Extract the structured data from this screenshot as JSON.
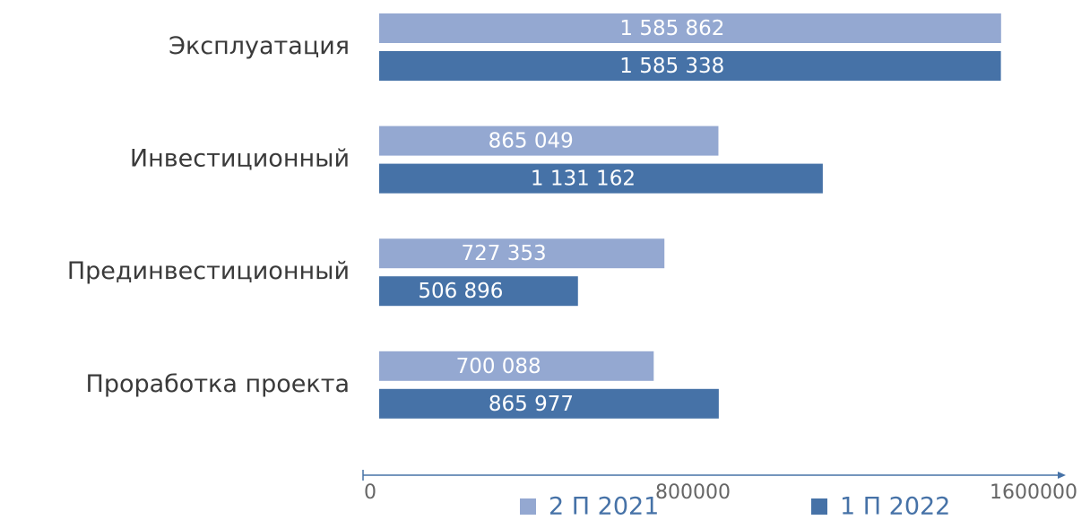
{
  "chart_data": {
    "type": "hbar",
    "categories": [
      "Эксплуатация",
      "Инвестиционный",
      "Прединвестиционный",
      "Проработка проекта"
    ],
    "series": [
      {
        "name": "2 П 2021",
        "color": "#94a8d1",
        "values": [
          1585862,
          865049,
          727353,
          700088
        ],
        "value_labels": [
          "1 585 862",
          "865 049",
          "727 353",
          "700 088"
        ]
      },
      {
        "name": "1 П 2022",
        "color": "#4672a7",
        "values": [
          1585338,
          1131162,
          506896,
          865977
        ],
        "value_labels": [
          "1 585 338",
          "1 131 162",
          "506 896",
          "865 977"
        ]
      }
    ],
    "xlim": [
      0,
      1600000
    ],
    "xticks": [
      0,
      800000,
      1600000
    ],
    "legend": "bottom"
  }
}
